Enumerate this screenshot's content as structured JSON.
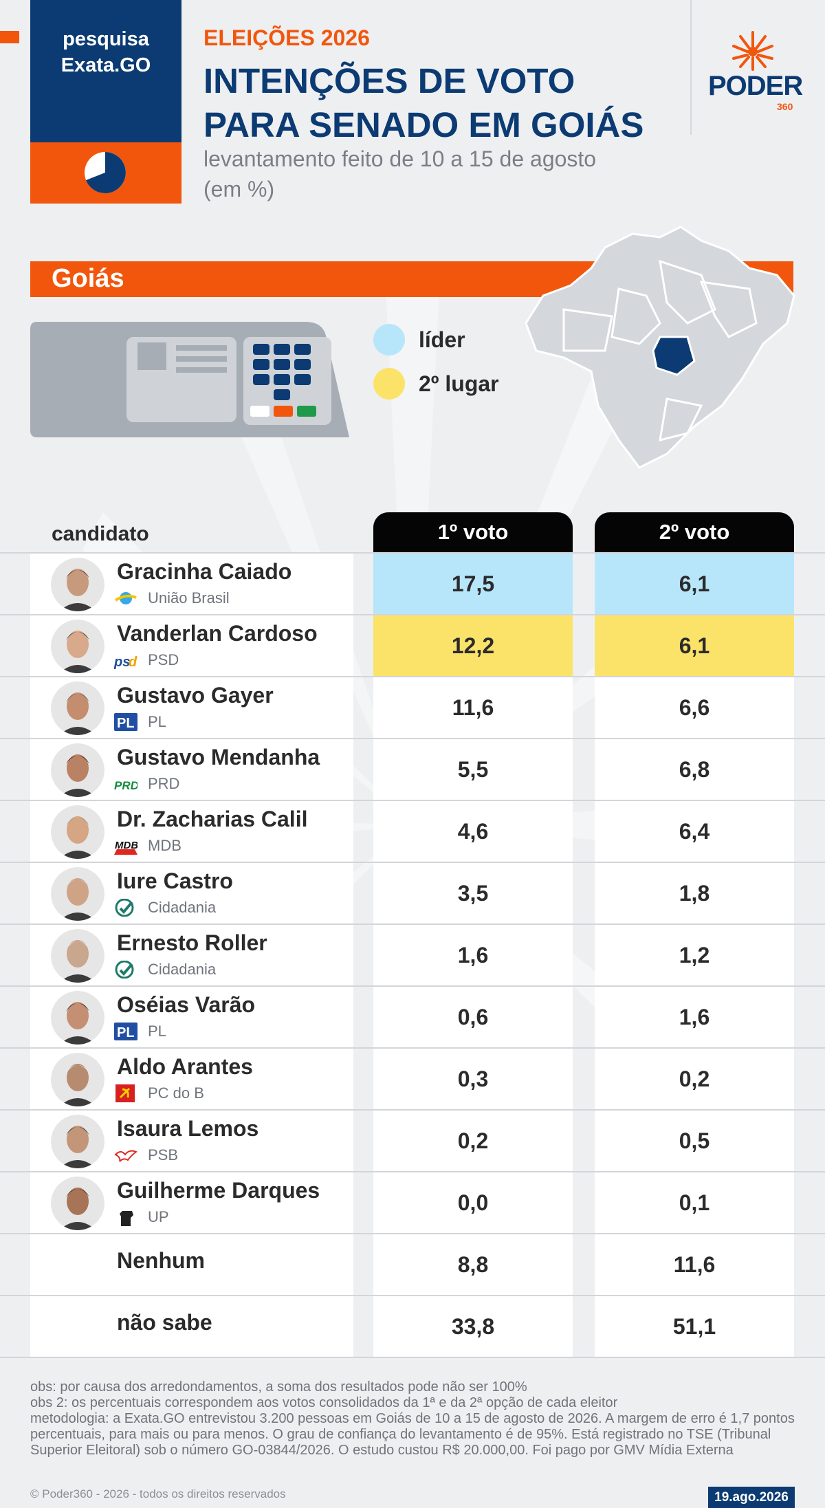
{
  "header": {
    "brand_line1": "pesquisa",
    "brand_line2": "Exata.GO",
    "kicker": "ELEIÇÕES 2026",
    "title_line1": "INTENÇÕES DE VOTO",
    "title_line2": "PARA SENADO EM GOIÁS",
    "subtitle_line1": "levantamento feito de 10 a 15 de agosto",
    "subtitle_line2": "(em %)",
    "logo_word": "PODER",
    "logo_num": "360"
  },
  "region": {
    "label": "Goiás"
  },
  "legend": {
    "items": [
      {
        "label": "líder",
        "color": "#b7e6fb"
      },
      {
        "label": "2º lugar",
        "color": "#fbe36a"
      }
    ]
  },
  "chart_data": {
    "type": "table",
    "columns": [
      "candidato",
      "1º voto",
      "2º voto"
    ],
    "rows": [
      {
        "name": "Gracinha Caiado",
        "party": "União Brasil",
        "logo": "uniao-brasil-logo-icon",
        "v1": "17,5",
        "v2": "6,1",
        "hl1": "leader",
        "hl2": "leader"
      },
      {
        "name": "Vanderlan Cardoso",
        "party": "PSD",
        "logo": "psd-logo-icon",
        "v1": "12,2",
        "v2": "6,1",
        "hl1": "second",
        "hl2": "second"
      },
      {
        "name": "Gustavo Gayer",
        "party": "PL",
        "logo": "pl-logo-icon",
        "v1": "11,6",
        "v2": "6,6",
        "hl1": "",
        "hl2": ""
      },
      {
        "name": "Gustavo Mendanha",
        "party": "PRD",
        "logo": "prd-logo-icon",
        "v1": "5,5",
        "v2": "6,8",
        "hl1": "",
        "hl2": ""
      },
      {
        "name": "Dr. Zacharias Calil",
        "party": "MDB",
        "logo": "mdb-logo-icon",
        "v1": "4,6",
        "v2": "6,4",
        "hl1": "",
        "hl2": ""
      },
      {
        "name": "Iure Castro",
        "party": "Cidadania",
        "logo": "cidadania-logo-icon",
        "v1": "3,5",
        "v2": "1,8",
        "hl1": "",
        "hl2": ""
      },
      {
        "name": "Ernesto Roller",
        "party": "Cidadania",
        "logo": "cidadania-logo-icon",
        "v1": "1,6",
        "v2": "1,2",
        "hl1": "",
        "hl2": ""
      },
      {
        "name": "Oséias Varão",
        "party": "PL",
        "logo": "pl-logo-icon",
        "v1": "0,6",
        "v2": "1,6",
        "hl1": "",
        "hl2": ""
      },
      {
        "name": "Aldo Arantes",
        "party": "PC do B",
        "logo": "pcdob-logo-icon",
        "v1": "0,3",
        "v2": "0,2",
        "hl1": "",
        "hl2": ""
      },
      {
        "name": "Isaura Lemos",
        "party": "PSB",
        "logo": "psb-logo-icon",
        "v1": "0,2",
        "v2": "0,5",
        "hl1": "",
        "hl2": ""
      },
      {
        "name": "Guilherme Darques",
        "party": "UP",
        "logo": "up-logo-icon",
        "v1": "0,0",
        "v2": "0,1",
        "hl1": "",
        "hl2": ""
      },
      {
        "name": "Nenhum",
        "party": "",
        "logo": "",
        "v1": "8,8",
        "v2": "11,6",
        "hl1": "",
        "hl2": ""
      },
      {
        "name": "não sabe",
        "party": "",
        "logo": "",
        "v1": "33,8",
        "v2": "51,1",
        "hl1": "",
        "hl2": ""
      }
    ]
  },
  "colors": {
    "navy": "#0c3b73",
    "orange": "#f2560c",
    "leader": "#b7e6fb",
    "second": "#fbe36a"
  },
  "notes": {
    "line1": "obs: por causa dos arredondamentos, a soma dos resultados pode não ser 100%",
    "line2": "obs 2: os percentuais correspondem aos votos consolidados da 1ª e da 2ª opção de cada eleitor",
    "line3": "metodologia: a Exata.GO entrevistou 3.200 pessoas em Goiás de 10 a 15 de agosto de 2026. A margem de erro é 1,7 pontos percentuais, para mais ou para menos. O grau de confiança do levantamento é de 95%. Está registrado no TSE (Tribunal Superior Eleitoral) sob o número GO-03844/2026. O estudo custou R$ 20.000,00. Foi pago por GMV Mídia Externa",
    "copyright": "© Poder360 - 2026 - todos os direitos reservados",
    "date": "19.ago.2026"
  }
}
